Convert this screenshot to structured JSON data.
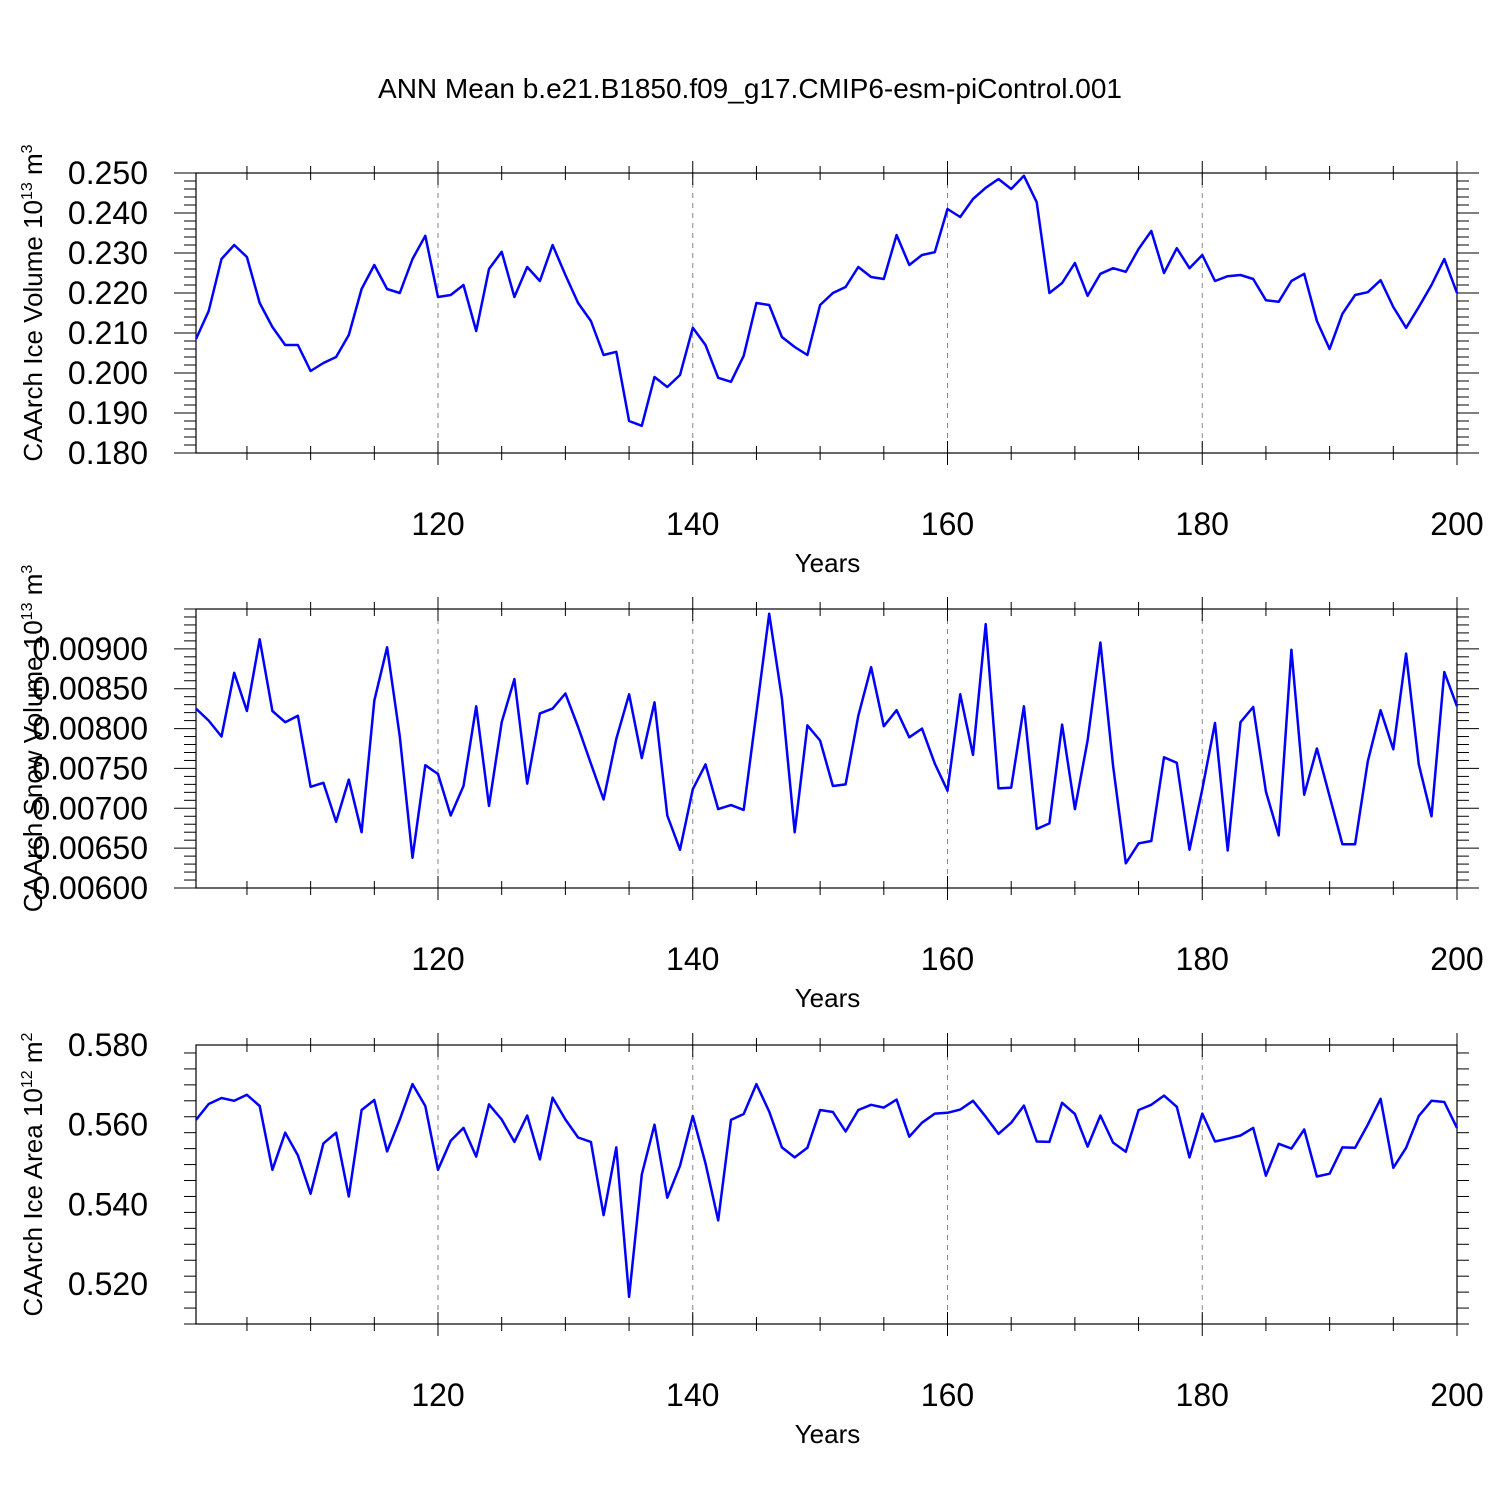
{
  "title": "ANN Mean b.e21.B1850.f09_g17.CMIP6-esm-piControl.001",
  "line_color": "#0000ff",
  "chart_data": [
    {
      "type": "line",
      "name": "CAArch Ice Volume",
      "ylabel_main": "CAArch Ice Volume 10",
      "ylabel_exp": "13",
      "ylabel_unit": "m",
      "ylabel_unit_exp": "3",
      "xlabel": "Years",
      "xlim": [
        101,
        200
      ],
      "ylim": [
        0.18,
        0.25
      ],
      "xticks": [
        "120",
        "140",
        "160",
        "180",
        "200"
      ],
      "yticks": [
        "0.180",
        "0.190",
        "0.200",
        "0.210",
        "0.220",
        "0.230",
        "0.240",
        "0.250"
      ],
      "x_start": 101,
      "values": [
        0.2085,
        0.2155,
        0.2285,
        0.232,
        0.229,
        0.2175,
        0.2115,
        0.207,
        0.207,
        0.2005,
        0.2025,
        0.204,
        0.2095,
        0.221,
        0.227,
        0.221,
        0.22,
        0.2285,
        0.2343,
        0.219,
        0.2195,
        0.222,
        0.2105,
        0.226,
        0.2303,
        0.219,
        0.2265,
        0.223,
        0.232,
        0.2245,
        0.2175,
        0.213,
        0.2045,
        0.2053,
        0.188,
        0.1868,
        0.199,
        0.1965,
        0.1995,
        0.2113,
        0.207,
        0.1988,
        0.1978,
        0.2043,
        0.2175,
        0.217,
        0.209,
        0.2065,
        0.2045,
        0.217,
        0.22,
        0.2215,
        0.2265,
        0.224,
        0.2235,
        0.2345,
        0.227,
        0.2295,
        0.2302,
        0.241,
        0.239,
        0.2435,
        0.2463,
        0.2485,
        0.246,
        0.2493,
        0.2427,
        0.22,
        0.2225,
        0.2275,
        0.2193,
        0.2248,
        0.2262,
        0.2253,
        0.231,
        0.2355,
        0.225,
        0.2312,
        0.2262,
        0.2295,
        0.223,
        0.2242,
        0.2245,
        0.2235,
        0.2182,
        0.2178,
        0.223,
        0.2248,
        0.213,
        0.206,
        0.2148,
        0.2195,
        0.2202,
        0.2232,
        0.2165,
        0.2113,
        0.2165,
        0.222,
        0.2285,
        0.22
      ]
    },
    {
      "type": "line",
      "name": "CAArch Snow Volume",
      "ylabel_main": "CAArch Snow Volume 10",
      "ylabel_exp": "13",
      "ylabel_unit": "m",
      "ylabel_unit_exp": "3",
      "xlabel": "Years",
      "xlim": [
        101,
        200
      ],
      "ylim": [
        0.006,
        0.0095
      ],
      "xticks": [
        "120",
        "140",
        "160",
        "180",
        "200"
      ],
      "yticks": [
        "0.00600",
        "0.00650",
        "0.00700",
        "0.00750",
        "0.00800",
        "0.00850",
        "0.00900"
      ],
      "x_start": 101,
      "values": [
        0.00825,
        0.0081,
        0.0079,
        0.0087,
        0.00822,
        0.00912,
        0.00822,
        0.00808,
        0.00816,
        0.00727,
        0.00732,
        0.00683,
        0.00736,
        0.0067,
        0.00835,
        0.00902,
        0.0079,
        0.00638,
        0.00754,
        0.00743,
        0.00691,
        0.00728,
        0.00828,
        0.00703,
        0.00808,
        0.00862,
        0.00731,
        0.00819,
        0.00825,
        0.00844,
        0.00802,
        0.00756,
        0.00711,
        0.00787,
        0.00843,
        0.00763,
        0.00833,
        0.00691,
        0.00648,
        0.00724,
        0.00755,
        0.00699,
        0.00704,
        0.00698,
        0.0082,
        0.00944,
        0.00838,
        0.0067,
        0.00804,
        0.00785,
        0.00728,
        0.0073,
        0.00816,
        0.00877,
        0.00803,
        0.00823,
        0.00789,
        0.008,
        0.00756,
        0.00722,
        0.00843,
        0.00767,
        0.00931,
        0.00725,
        0.00726,
        0.00828,
        0.00674,
        0.00681,
        0.00805,
        0.00699,
        0.00785,
        0.00908,
        0.00753,
        0.00631,
        0.00656,
        0.00659,
        0.00764,
        0.00757,
        0.00648,
        0.00724,
        0.00807,
        0.00647,
        0.00808,
        0.00827,
        0.00721,
        0.00666,
        0.00899,
        0.00717,
        0.00775,
        0.00715,
        0.00655,
        0.00655,
        0.00759,
        0.00823,
        0.00774,
        0.00894,
        0.00755,
        0.0069,
        0.00871,
        0.00828
      ]
    },
    {
      "type": "line",
      "name": "CAArch Ice Area",
      "ylabel_main": "CAArch Ice Area 10",
      "ylabel_exp": "12",
      "ylabel_unit": "m",
      "ylabel_unit_exp": "2",
      "xlabel": "Years",
      "xlim": [
        101,
        200
      ],
      "ylim": [
        0.51,
        0.58
      ],
      "xticks": [
        "120",
        "140",
        "160",
        "180",
        "200"
      ],
      "yticks": [
        "0.520",
        "0.540",
        "0.560",
        "0.580"
      ],
      "x_start": 101,
      "values": [
        0.5612,
        0.5652,
        0.5667,
        0.566,
        0.5675,
        0.5647,
        0.5487,
        0.558,
        0.5523,
        0.5427,
        0.5553,
        0.558,
        0.542,
        0.5637,
        0.5662,
        0.5533,
        0.5613,
        0.5702,
        0.5647,
        0.5487,
        0.556,
        0.5592,
        0.552,
        0.5651,
        0.5613,
        0.5557,
        0.5623,
        0.5513,
        0.5668,
        0.5613,
        0.5568,
        0.5557,
        0.5373,
        0.5543,
        0.5168,
        0.5475,
        0.56,
        0.5417,
        0.5497,
        0.5622,
        0.5503,
        0.536,
        0.5612,
        0.5627,
        0.5702,
        0.5633,
        0.5543,
        0.5518,
        0.5542,
        0.5637,
        0.5632,
        0.5583,
        0.5637,
        0.565,
        0.5643,
        0.5663,
        0.557,
        0.5605,
        0.5628,
        0.563,
        0.5638,
        0.566,
        0.562,
        0.5577,
        0.5605,
        0.5648,
        0.5558,
        0.5557,
        0.5655,
        0.5627,
        0.5545,
        0.5623,
        0.5555,
        0.5532,
        0.5637,
        0.565,
        0.5673,
        0.5645,
        0.5518,
        0.5628,
        0.5558,
        0.5565,
        0.5573,
        0.5592,
        0.5472,
        0.5552,
        0.554,
        0.5588,
        0.547,
        0.5477,
        0.5543,
        0.5542,
        0.56,
        0.5665,
        0.5492,
        0.5542,
        0.5622,
        0.566,
        0.5657,
        0.5592
      ]
    }
  ]
}
